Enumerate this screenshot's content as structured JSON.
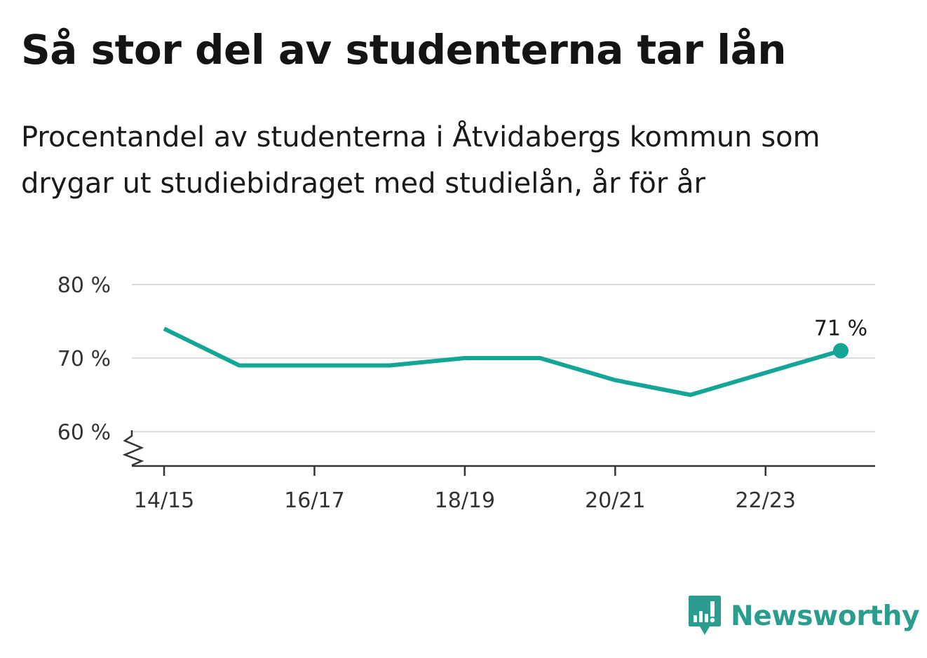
{
  "header": {
    "title": "Så stor del av studenterna tar lån",
    "subtitle": "Procentandel av studenterna i Åtvidabergs kommun som drygar ut studiebidraget med studielån, år för år"
  },
  "chart_data": {
    "type": "line",
    "title": "Så stor del av studenterna tar lån",
    "subtitle": "Procentandel av studenterna i Åtvidabergs kommun som drygar ut studiebidraget med studielån, år för år",
    "xlabel": "",
    "ylabel": "",
    "x": [
      "14/15",
      "15/16",
      "16/17",
      "17/18",
      "18/19",
      "19/20",
      "20/21",
      "21/22",
      "22/23",
      "23/24"
    ],
    "x_tick_labels": [
      "14/15",
      "16/17",
      "18/19",
      "20/21",
      "22/23"
    ],
    "series": [
      {
        "values": [
          74,
          69,
          69,
          69,
          70,
          70,
          67,
          65,
          68,
          71
        ],
        "color": "#13a596"
      }
    ],
    "ylim": [
      55,
      80
    ],
    "y_ticks": [
      60,
      70,
      80
    ],
    "y_tick_labels": [
      "60 %",
      "70 %",
      "80 %"
    ],
    "axis_break": true,
    "grid": true,
    "legend": "none",
    "annotation": {
      "index": 9,
      "text": "71 %"
    }
  },
  "colors": {
    "line": "#13a596",
    "grid": "#dcdcdc",
    "axis": "#333333",
    "brand": "#2a9d8f"
  },
  "brand": {
    "name": "Newsworthy",
    "icon": "newsworthy-logo-icon"
  }
}
